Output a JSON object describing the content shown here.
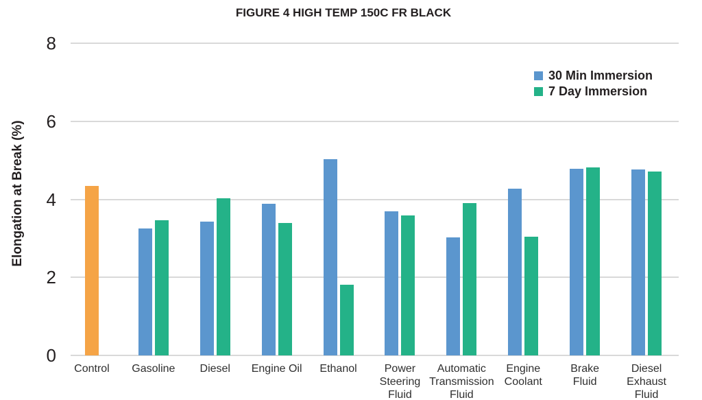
{
  "chart_data": {
    "type": "bar",
    "title": "FIGURE 4 HIGH TEMP 150C FR BLACK",
    "ylabel": "Elongation at Break (%)",
    "xlabel": "",
    "ylim": [
      0,
      8
    ],
    "yticks": [
      0,
      2,
      4,
      6,
      8
    ],
    "grid": "horizontal",
    "legend_position": "top-right",
    "categories": [
      "Control",
      "Gasoline",
      "Diesel",
      "Engine Oil",
      "Ethanol",
      "Power Steering Fluid",
      "Automatic Transmission Fluid",
      "Engine Coolant",
      "Brake Fluid",
      "Diesel Exhaust Fluid"
    ],
    "category_lines": [
      [
        "Control"
      ],
      [
        "Gasoline"
      ],
      [
        "Diesel"
      ],
      [
        "Engine Oil"
      ],
      [
        "Ethanol"
      ],
      [
        "Power",
        "Steering",
        "Fluid"
      ],
      [
        "Automatic",
        "Transmission",
        "Fluid"
      ],
      [
        "Engine",
        "Coolant"
      ],
      [
        "Brake",
        "Fluid"
      ],
      [
        "Diesel",
        "Exhaust",
        "Fluid"
      ]
    ],
    "control_bar": {
      "category": "Control",
      "value": 4.34,
      "color": "#F5A446",
      "note": "single orange bar shown only for Control"
    },
    "series": [
      {
        "name": "30 Min Immersion",
        "color": "#5B96CE",
        "values": [
          null,
          3.25,
          3.43,
          3.89,
          5.03,
          3.69,
          3.02,
          4.27,
          4.78,
          4.76
        ]
      },
      {
        "name": "7 Day Immersion",
        "color": "#24B288",
        "values": [
          null,
          3.47,
          4.02,
          3.39,
          1.81,
          3.59,
          3.9,
          3.04,
          4.81,
          4.71
        ]
      }
    ],
    "colors": {
      "grid": "#D9D9D9",
      "axis_text": "#231F20",
      "xlabel_text": "#2E2E2E",
      "background": "#FFFFFF"
    }
  }
}
